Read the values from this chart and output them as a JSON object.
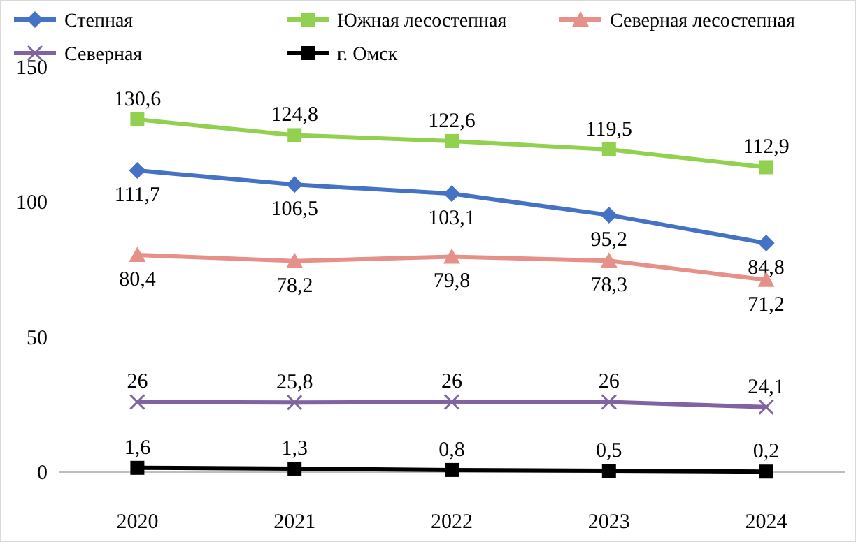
{
  "chart_data": {
    "type": "line",
    "categories": [
      "2020",
      "2021",
      "2022",
      "2023",
      "2024"
    ],
    "ylim": [
      0,
      150
    ],
    "yticks": [
      0,
      50,
      100,
      150
    ],
    "grid": false,
    "legend": "top",
    "line_style": "solid",
    "series": [
      {
        "name": "Степная",
        "color": "#4472c4",
        "marker": "diamond",
        "values": [
          111.7,
          106.5,
          103.1,
          95.2,
          84.8
        ],
        "value_labels": [
          "111,7",
          "106,5",
          "103,1",
          "95,2",
          "84,8"
        ]
      },
      {
        "name": "Южная лесостепная",
        "color": "#92d050",
        "marker": "square",
        "values": [
          130.6,
          124.8,
          122.6,
          119.5,
          112.9
        ],
        "value_labels": [
          "130,6",
          "124,8",
          "122,6",
          "119,5",
          "112,9"
        ]
      },
      {
        "name": "Северная лесостепная",
        "color": "#e6908a",
        "marker": "triangle",
        "values": [
          80.4,
          78.2,
          79.8,
          78.3,
          71.2
        ],
        "value_labels": [
          "80,4",
          "78,2",
          "79,8",
          "78,3",
          "71,2"
        ]
      },
      {
        "name": "Северная",
        "color": "#8064a2",
        "marker": "cross",
        "values": [
          26,
          25.8,
          26,
          26,
          24.1
        ],
        "value_labels": [
          "26",
          "25,8",
          "26",
          "26",
          "24,1"
        ]
      },
      {
        "name": "г. Омск",
        "color": "#000000",
        "marker": "square",
        "values": [
          1.6,
          1.3,
          0.8,
          0.5,
          0.2
        ],
        "value_labels": [
          "1,6",
          "1,3",
          "0,8",
          "0,5",
          "0,2"
        ]
      }
    ]
  }
}
